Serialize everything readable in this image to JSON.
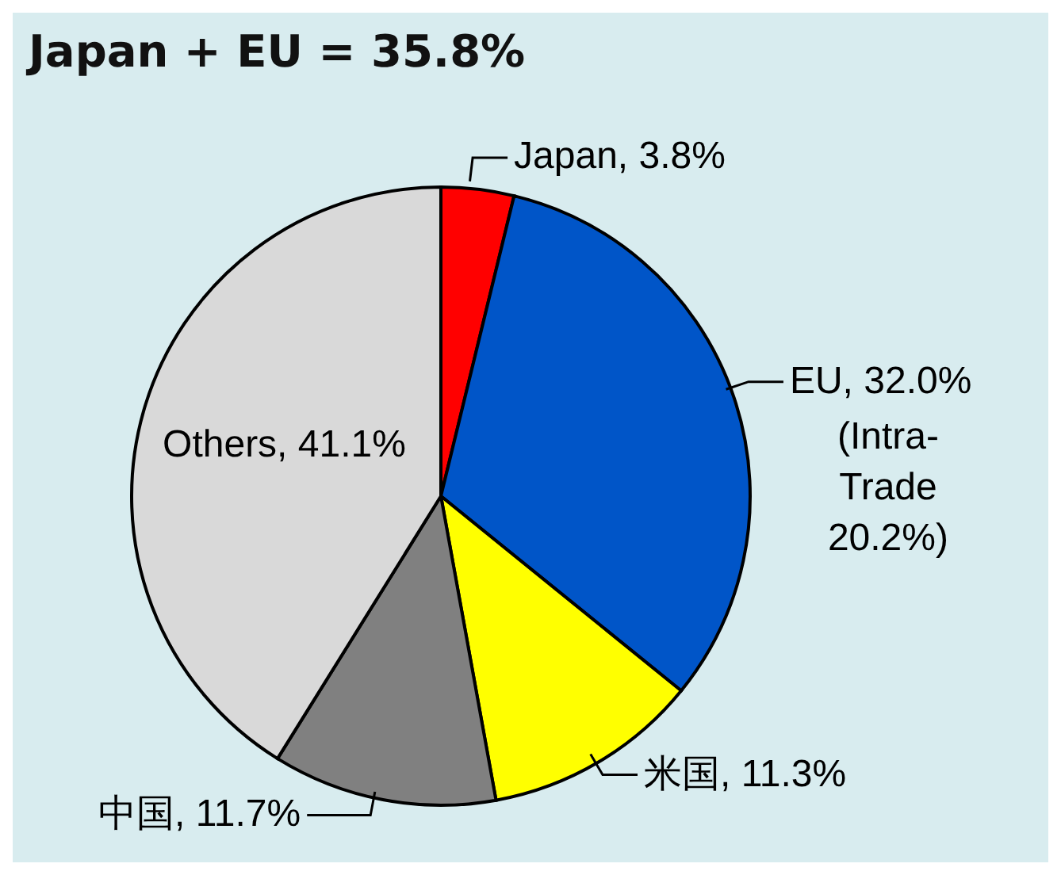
{
  "chart_data": {
    "type": "pie",
    "title": "Japan + EU = 35.8%",
    "categories": [
      "Japan",
      "EU",
      "米国",
      "中国",
      "Others"
    ],
    "values": [
      3.8,
      32.0,
      11.3,
      11.7,
      41.1
    ],
    "value_labels": [
      "3.8%",
      "32.0%",
      "11.3%",
      "11.7%",
      "41.1%"
    ],
    "colors": [
      "#ff0000",
      "#0055c8",
      "#ffff00",
      "#808080",
      "#d9d9d9"
    ],
    "annotations": [
      {
        "text": "(Intra-Trade 20.2%)",
        "x": "EU"
      }
    ]
  }
}
